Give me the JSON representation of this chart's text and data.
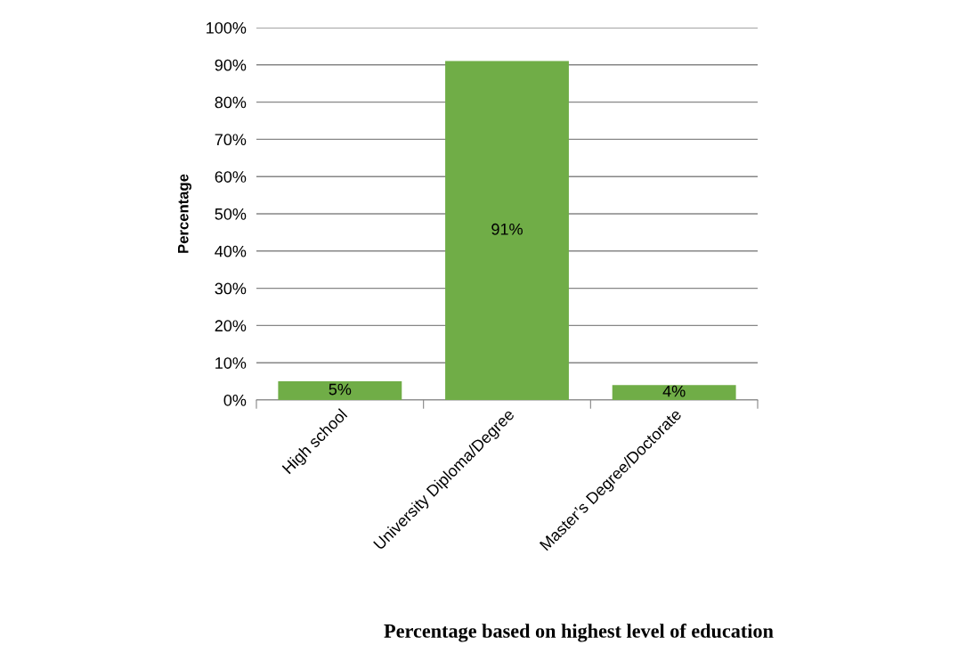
{
  "chart_data": {
    "type": "bar",
    "xlabel": "Percentage based on highest level of education",
    "ylabel": "Percentage",
    "categories": [
      "High school",
      "University Diploma/Degree",
      "Master’s Degree/Doctorate"
    ],
    "values": [
      5,
      91,
      4
    ],
    "color": "#70ad47",
    "value_labels": [
      "5%",
      "91%",
      "4%"
    ],
    "ylim": [
      0,
      100
    ],
    "yticks": [
      {
        "value": 0,
        "label": "0%"
      },
      {
        "value": 10,
        "label": "10%"
      },
      {
        "value": 20,
        "label": "20%"
      },
      {
        "value": 30,
        "label": "30%"
      },
      {
        "value": 40,
        "label": "40%"
      },
      {
        "value": 50,
        "label": "50%"
      },
      {
        "value": 60,
        "label": "60%"
      },
      {
        "value": 70,
        "label": "70%"
      },
      {
        "value": 80,
        "label": "80%"
      },
      {
        "value": 90,
        "label": "90%"
      },
      {
        "value": 100,
        "label": "100%"
      }
    ],
    "grid": "y",
    "legend": false
  }
}
